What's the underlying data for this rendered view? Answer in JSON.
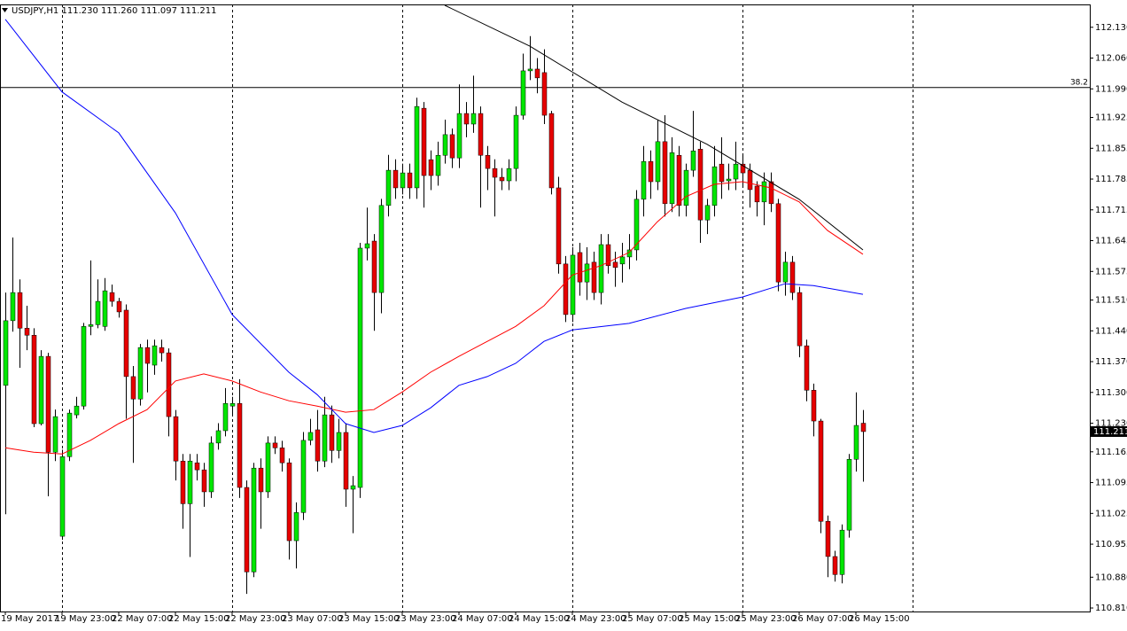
{
  "chart_data": {
    "type": "candlestick",
    "header": {
      "symbol": "USDJPY,H1",
      "ohlc_labels": [
        "111.230",
        "111.260",
        "111.097",
        "111.211"
      ]
    },
    "up_color": "#00e600",
    "down_color": "#e60000",
    "wick_color": "#000000",
    "xlim": [
      -0.75,
      153
    ],
    "ylim": [
      110.802,
      112.192
    ],
    "xticks": [
      {
        "value": 0,
        "label": "19 May 2017"
      },
      {
        "value": 8,
        "label": "19 May 23:00"
      },
      {
        "value": 16,
        "label": "22 May 07:00"
      },
      {
        "value": 24,
        "label": "22 May 15:00"
      },
      {
        "value": 32,
        "label": "22 May 23:00"
      },
      {
        "value": 40,
        "label": "23 May 07:00"
      },
      {
        "value": 48,
        "label": "23 May 15:00"
      },
      {
        "value": 56,
        "label": "23 May 23:00"
      },
      {
        "value": 64,
        "label": "24 May 07:00"
      },
      {
        "value": 72,
        "label": "24 May 15:00"
      },
      {
        "value": 80,
        "label": "24 May 23:00"
      },
      {
        "value": 88,
        "label": "25 May 07:00"
      },
      {
        "value": 96,
        "label": "25 May 15:00"
      },
      {
        "value": 104,
        "label": "25 May 23:00"
      },
      {
        "value": 112,
        "label": "26 May 07:00"
      },
      {
        "value": 120,
        "label": "26 May 15:00"
      }
    ],
    "vgrid": [
      8,
      32,
      56,
      80,
      104,
      128
    ],
    "yticks": [
      {
        "value": 112.13,
        "label": "112.130"
      },
      {
        "value": 112.06,
        "label": "112.060"
      },
      {
        "value": 111.99,
        "label": "111.990"
      },
      111.925,
      111.855,
      111.785,
      111.715,
      111.645,
      111.575,
      {
        "value": 111.51,
        "label": "111.510"
      },
      {
        "value": 111.44,
        "label": "111.440"
      },
      {
        "value": 111.37,
        "label": "111.370"
      },
      {
        "value": 111.3,
        "label": "111.300"
      },
      {
        "value": 111.23,
        "label": "111.230"
      },
      111.165,
      111.095,
      111.025,
      110.955,
      {
        "value": 110.88,
        "label": "110.880"
      },
      {
        "value": 110.81,
        "label": "110.810"
      }
    ],
    "level": {
      "value": 111.993,
      "label": "38.2",
      "color": "#000000"
    },
    "ohlc": [
      [
        111.316,
        111.527,
        111.023,
        111.463
      ],
      [
        111.463,
        111.652,
        111.438,
        111.527
      ],
      [
        111.527,
        111.557,
        111.356,
        111.446
      ],
      [
        111.446,
        111.497,
        111.396,
        111.43
      ],
      [
        111.43,
        111.446,
        111.221,
        111.229
      ],
      [
        111.229,
        111.396,
        111.225,
        111.382
      ],
      [
        111.382,
        111.39,
        111.064,
        111.164
      ],
      [
        111.164,
        111.261,
        111.144,
        111.245
      ],
      [
        110.973,
        111.17,
        110.965,
        111.154
      ],
      [
        111.154,
        111.261,
        111.144,
        111.253
      ],
      [
        111.249,
        111.29,
        111.241,
        111.269
      ],
      [
        111.269,
        111.458,
        111.261,
        111.45
      ],
      [
        111.45,
        111.6,
        111.43,
        111.454
      ],
      [
        111.454,
        111.557,
        111.446,
        111.507
      ],
      [
        111.45,
        111.56,
        111.44,
        111.531
      ],
      [
        111.527,
        111.545,
        111.495,
        111.507
      ],
      [
        111.507,
        111.515,
        111.47,
        111.483
      ],
      [
        111.487,
        111.5,
        111.24,
        111.336
      ],
      [
        111.336,
        111.36,
        111.14,
        111.285
      ],
      [
        111.285,
        111.41,
        111.27,
        111.402
      ],
      [
        111.402,
        111.42,
        111.3,
        111.366
      ],
      [
        111.362,
        111.42,
        111.34,
        111.406
      ],
      [
        111.402,
        111.42,
        111.37,
        111.39
      ],
      [
        111.39,
        111.4,
        111.2,
        111.245
      ],
      [
        111.245,
        111.26,
        111.1,
        111.144
      ],
      [
        111.144,
        111.16,
        110.99,
        111.047
      ],
      [
        111.047,
        111.16,
        110.926,
        111.144
      ],
      [
        111.14,
        111.16,
        111.1,
        111.124
      ],
      [
        111.124,
        111.14,
        111.04,
        111.074
      ],
      [
        111.074,
        111.2,
        111.06,
        111.185
      ],
      [
        111.185,
        111.23,
        111.17,
        111.213
      ],
      [
        111.213,
        111.31,
        111.2,
        111.275
      ],
      [
        111.269,
        111.29,
        111.25,
        111.275
      ],
      [
        111.275,
        111.33,
        111.06,
        111.084
      ],
      [
        111.084,
        111.1,
        110.842,
        110.892
      ],
      [
        110.892,
        111.14,
        110.88,
        111.128
      ],
      [
        111.128,
        111.15,
        110.99,
        111.074
      ],
      [
        111.074,
        111.2,
        111.06,
        111.185
      ],
      [
        111.185,
        111.2,
        111.16,
        111.174
      ],
      [
        111.174,
        111.19,
        111.12,
        111.14
      ],
      [
        111.14,
        111.15,
        110.92,
        110.963
      ],
      [
        110.963,
        111.05,
        110.9,
        111.027
      ],
      [
        111.027,
        111.21,
        111.01,
        111.191
      ],
      [
        111.191,
        111.24,
        111.18,
        111.209
      ],
      [
        111.215,
        111.26,
        111.12,
        111.144
      ],
      [
        111.144,
        111.29,
        111.13,
        111.249
      ],
      [
        111.249,
        111.27,
        111.14,
        111.168
      ],
      [
        111.168,
        111.24,
        111.15,
        111.209
      ],
      [
        111.209,
        111.23,
        111.04,
        111.08
      ],
      [
        111.08,
        111.11,
        110.98,
        111.088
      ],
      [
        111.084,
        111.64,
        111.06,
        111.628
      ],
      [
        111.628,
        111.72,
        111.6,
        111.638
      ],
      [
        111.644,
        111.66,
        111.44,
        111.527
      ],
      [
        111.527,
        111.74,
        111.48,
        111.725
      ],
      [
        111.725,
        111.84,
        111.7,
        111.805
      ],
      [
        111.805,
        111.83,
        111.74,
        111.765
      ],
      [
        111.765,
        111.82,
        111.75,
        111.799
      ],
      [
        111.799,
        111.82,
        111.74,
        111.765
      ],
      [
        111.765,
        111.97,
        111.74,
        111.95
      ],
      [
        111.946,
        111.96,
        111.72,
        111.793
      ],
      [
        111.829,
        111.85,
        111.76,
        111.793
      ],
      [
        111.793,
        111.87,
        111.77,
        111.839
      ],
      [
        111.839,
        111.92,
        111.82,
        111.886
      ],
      [
        111.886,
        111.9,
        111.81,
        111.833
      ],
      [
        111.833,
        112.0,
        111.81,
        111.934
      ],
      [
        111.934,
        111.96,
        111.88,
        111.91
      ],
      [
        111.91,
        112.02,
        111.89,
        111.934
      ],
      [
        111.934,
        111.95,
        111.72,
        111.839
      ],
      [
        111.839,
        111.86,
        111.76,
        111.809
      ],
      [
        111.809,
        111.83,
        111.7,
        111.789
      ],
      [
        111.789,
        111.81,
        111.76,
        111.781
      ],
      [
        111.781,
        111.83,
        111.76,
        111.809
      ],
      [
        111.809,
        111.95,
        111.78,
        111.93
      ],
      [
        111.93,
        112.07,
        111.92,
        112.031
      ],
      [
        112.031,
        112.11,
        112.01,
        112.035
      ],
      [
        112.035,
        112.06,
        111.98,
        112.015
      ],
      [
        112.027,
        112.08,
        111.91,
        111.93
      ],
      [
        111.934,
        111.94,
        111.75,
        111.765
      ],
      [
        111.765,
        111.79,
        111.57,
        111.592
      ],
      [
        111.592,
        111.61,
        111.46,
        111.477
      ],
      [
        111.477,
        111.63,
        111.46,
        111.612
      ],
      [
        111.618,
        111.64,
        111.52,
        111.551
      ],
      [
        111.551,
        111.63,
        111.51,
        111.592
      ],
      [
        111.596,
        111.62,
        111.51,
        111.527
      ],
      [
        111.527,
        111.66,
        111.5,
        111.636
      ],
      [
        111.636,
        111.66,
        111.57,
        111.588
      ],
      [
        111.596,
        111.62,
        111.54,
        111.584
      ],
      [
        111.592,
        111.64,
        111.55,
        111.608
      ],
      [
        111.608,
        111.66,
        111.58,
        111.624
      ],
      [
        111.624,
        111.76,
        111.6,
        111.739
      ],
      [
        111.739,
        111.86,
        111.7,
        111.825
      ],
      [
        111.825,
        111.85,
        111.74,
        111.779
      ],
      [
        111.779,
        111.92,
        111.76,
        111.87
      ],
      [
        111.87,
        111.93,
        111.7,
        111.729
      ],
      [
        111.729,
        111.88,
        111.71,
        111.845
      ],
      [
        111.839,
        111.86,
        111.7,
        111.725
      ],
      [
        111.725,
        111.82,
        111.7,
        111.805
      ],
      [
        111.805,
        111.94,
        111.79,
        111.849
      ],
      [
        111.853,
        111.87,
        111.64,
        111.692
      ],
      [
        111.692,
        111.74,
        111.66,
        111.725
      ],
      [
        111.725,
        111.86,
        111.7,
        111.813
      ],
      [
        111.819,
        111.88,
        111.74,
        111.779
      ],
      [
        111.781,
        111.82,
        111.76,
        111.785
      ],
      [
        111.785,
        111.87,
        111.76,
        111.819
      ],
      [
        111.819,
        111.84,
        111.77,
        111.799
      ],
      [
        111.805,
        111.82,
        111.72,
        111.761
      ],
      [
        111.769,
        111.78,
        111.7,
        111.733
      ],
      [
        111.733,
        111.8,
        111.68,
        111.779
      ],
      [
        111.779,
        111.8,
        111.71,
        111.729
      ],
      [
        111.729,
        111.74,
        111.53,
        111.551
      ],
      [
        111.551,
        111.62,
        111.52,
        111.596
      ],
      [
        111.596,
        111.61,
        111.51,
        111.527
      ],
      [
        111.527,
        111.54,
        111.38,
        111.406
      ],
      [
        111.406,
        111.42,
        111.28,
        111.305
      ],
      [
        111.305,
        111.32,
        111.2,
        111.235
      ],
      [
        111.235,
        111.24,
        110.98,
        111.007
      ],
      [
        111.007,
        111.02,
        110.88,
        110.927
      ],
      [
        110.927,
        110.94,
        110.87,
        110.886
      ],
      [
        110.886,
        111.0,
        110.866,
        110.987
      ],
      [
        110.987,
        111.16,
        110.97,
        111.148
      ],
      [
        111.148,
        111.3,
        111.12,
        111.225
      ],
      [
        111.23,
        111.26,
        111.097,
        111.211
      ]
    ],
    "lines": [
      {
        "color": "#ff0000",
        "x": [
          0,
          4,
          8,
          12,
          16,
          20,
          24,
          28,
          32,
          36,
          40,
          44,
          48,
          52,
          56,
          60,
          64,
          68,
          72,
          76,
          80,
          84,
          88,
          92,
          96,
          100,
          104,
          108,
          112,
          116,
          121
        ],
        "values": [
          111.174,
          111.164,
          111.16,
          111.191,
          111.229,
          111.261,
          111.326,
          111.342,
          111.326,
          111.301,
          111.281,
          111.269,
          111.255,
          111.261,
          111.301,
          111.346,
          111.382,
          111.416,
          111.45,
          111.497,
          111.567,
          111.588,
          111.618,
          111.688,
          111.745,
          111.773,
          111.779,
          111.765,
          111.733,
          111.668,
          111.614
        ]
      },
      {
        "color": "#0000ff",
        "x": [
          0,
          8,
          16,
          24,
          32,
          40,
          44,
          48,
          52,
          56,
          60,
          64,
          68,
          72,
          76,
          80,
          88,
          96,
          104,
          110,
          114,
          121
        ],
        "values": [
          112.148,
          111.983,
          111.89,
          111.708,
          111.477,
          111.346,
          111.295,
          111.229,
          111.209,
          111.225,
          111.265,
          111.316,
          111.336,
          111.366,
          111.416,
          111.442,
          111.457,
          111.491,
          111.517,
          111.547,
          111.543,
          111.523
        ]
      },
      {
        "color": "#000000",
        "x": [
          62,
          74,
          87,
          99,
          112,
          121
        ],
        "values": [
          112.18,
          112.087,
          111.96,
          111.864,
          111.739,
          111.624
        ]
      }
    ]
  }
}
